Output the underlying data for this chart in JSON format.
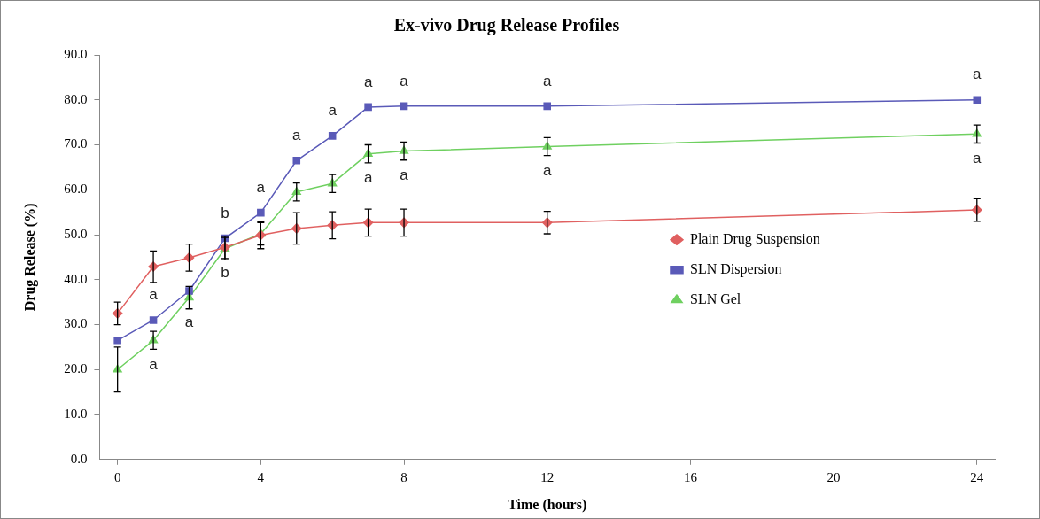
{
  "chart_data": {
    "type": "line",
    "title": "Ex-vivo Drug Release Profiles",
    "xlabel": "Time (hours)",
    "ylabel": "Drug Release (%)",
    "x": [
      0,
      1,
      2,
      3,
      4,
      5,
      6,
      7,
      8,
      12,
      24
    ],
    "xlim": [
      -0.5,
      24.5
    ],
    "xticks": [
      0,
      4,
      8,
      12,
      16,
      20,
      24
    ],
    "ylim": [
      0,
      90
    ],
    "yticks": [
      {
        "value": 0,
        "label": "0.0"
      },
      {
        "value": 10,
        "label": "10.0"
      },
      {
        "value": 20,
        "label": "20.0"
      },
      {
        "value": 30,
        "label": "30.0"
      },
      {
        "value": 40,
        "label": "40.0"
      },
      {
        "value": 50,
        "label": "50.0"
      },
      {
        "value": 60,
        "label": "60.0"
      },
      {
        "value": 70,
        "label": "70.0"
      },
      {
        "value": 80,
        "label": "80.0"
      },
      {
        "value": 90,
        "label": "90.0"
      }
    ],
    "grid": false,
    "legend": "right",
    "line_style": "solid",
    "series": [
      {
        "name": "Plain Drug Suspension",
        "color": "#e06060",
        "marker": "diamond",
        "values": [
          32.5,
          42.9,
          44.9,
          47.2,
          49.9,
          51.4,
          52.1,
          52.7,
          52.7,
          52.7,
          55.5
        ],
        "errors": [
          2.5,
          3.5,
          3,
          2.5,
          3,
          3.5,
          3,
          3,
          3,
          2.5,
          2.5
        ]
      },
      {
        "name": "SLN Dispersion",
        "color": "#5a5ab8",
        "marker": "square",
        "values": [
          26.5,
          31,
          37.5,
          49.2,
          54.9,
          66.5,
          72,
          78.4,
          78.6,
          78.6,
          80
        ]
      },
      {
        "name": "SLN Gel",
        "color": "#6fd060",
        "marker": "triangle",
        "values": [
          20,
          26.5,
          36,
          46.9,
          50.2,
          59.5,
          61.4,
          68,
          68.6,
          69.6,
          72.4
        ],
        "errors": [
          5,
          2,
          2.5,
          2.5,
          2.5,
          2,
          2,
          2,
          2,
          2,
          2
        ]
      }
    ],
    "annotations": [
      {
        "text": "a",
        "x": 1,
        "y": 31
      },
      {
        "text": "a",
        "x": 1,
        "y": 26.5
      },
      {
        "text": "a",
        "x": 2,
        "y": 36
      },
      {
        "text": "b",
        "x": 3,
        "y": 49.2
      },
      {
        "text": "b",
        "x": 3,
        "y": 46.9
      },
      {
        "text": "a",
        "x": 4,
        "y": 54.9
      },
      {
        "text": "a",
        "x": 5,
        "y": 66.5
      },
      {
        "text": "a",
        "x": 6,
        "y": 72
      },
      {
        "text": "a",
        "x": 7,
        "y": 78.4
      },
      {
        "text": "a",
        "x": 8,
        "y": 78.6
      },
      {
        "text": "a",
        "x": 7,
        "y": 68
      },
      {
        "text": "a",
        "x": 8,
        "y": 68.6
      },
      {
        "text": "a",
        "x": 12,
        "y": 78.6
      },
      {
        "text": "a",
        "x": 12,
        "y": 69.6
      },
      {
        "text": "a",
        "x": 24,
        "y": 80
      },
      {
        "text": "a",
        "x": 24,
        "y": 72.4
      }
    ]
  }
}
